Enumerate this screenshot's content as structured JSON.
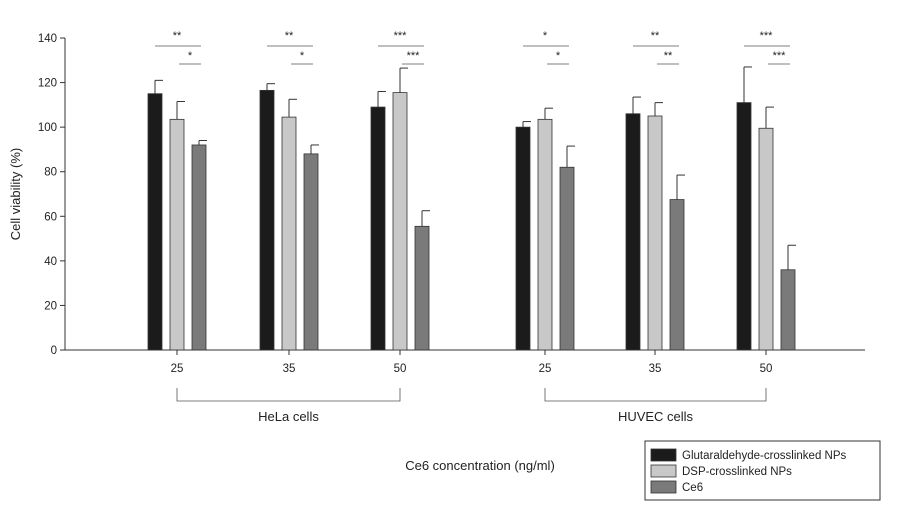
{
  "chart_data": {
    "type": "bar",
    "ylabel": "Cell viability (%)",
    "xlabel": "Ce6 concentration (ng/ml)",
    "ylim": [
      0,
      140
    ],
    "yticks": [
      0,
      20,
      40,
      60,
      80,
      100,
      120,
      140
    ],
    "grid": false,
    "legend_position": "bottom-right",
    "groups": [
      {
        "name": "HeLa cells",
        "categories": [
          "25",
          "35",
          "50"
        ],
        "significance": [
          {
            "top": "**",
            "bottom": "*"
          },
          {
            "top": "**",
            "bottom": "*"
          },
          {
            "top": "***",
            "bottom": "***"
          }
        ]
      },
      {
        "name": "HUVEC cells",
        "categories": [
          "25",
          "35",
          "50"
        ],
        "significance": [
          {
            "top": "*",
            "bottom": "*"
          },
          {
            "top": "**",
            "bottom": "**"
          },
          {
            "top": "***",
            "bottom": "***"
          }
        ]
      }
    ],
    "series": [
      {
        "name": "Glutaraldehyde-crosslinked NPs",
        "color": "#1b1b1b",
        "values": [
          115,
          116.5,
          109,
          100,
          106,
          111
        ],
        "errors": [
          6,
          3,
          7,
          2.5,
          7.5,
          16
        ]
      },
      {
        "name": "DSP-crosslinked NPs",
        "color": "#c8c8c8",
        "values": [
          103.5,
          104.5,
          115.5,
          103.5,
          105,
          99.5
        ],
        "errors": [
          8,
          8,
          11,
          5,
          6,
          9.5
        ]
      },
      {
        "name": "Ce6",
        "color": "#7a7a7a",
        "values": [
          92,
          88,
          55.5,
          82,
          67.5,
          36
        ],
        "errors": [
          2,
          4,
          7,
          9.5,
          11,
          11
        ]
      }
    ]
  }
}
